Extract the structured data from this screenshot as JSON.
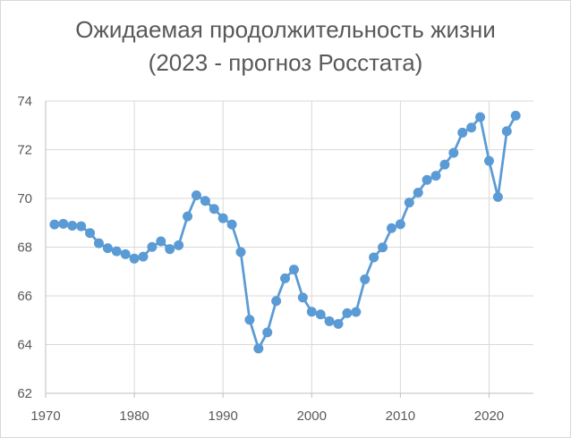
{
  "chart_data": {
    "type": "line",
    "title_lines": [
      "Ожидаемая продолжительность жизни",
      "(2023 - прогноз Росстата)"
    ],
    "xlabel": "",
    "ylabel": "",
    "xlim": [
      1970,
      2025
    ],
    "ylim": [
      62,
      74
    ],
    "x_ticks": [
      1970,
      1980,
      1990,
      2000,
      2010,
      2020
    ],
    "y_ticks": [
      62,
      64,
      66,
      68,
      70,
      72,
      74
    ],
    "grid": true,
    "legend": "none",
    "series": [
      {
        "color": "#5b9bd5",
        "x": [
          1971,
          1972,
          1973,
          1974,
          1975,
          1976,
          1977,
          1978,
          1979,
          1980,
          1981,
          1982,
          1983,
          1984,
          1985,
          1986,
          1987,
          1988,
          1989,
          1990,
          1991,
          1992,
          1993,
          1994,
          1995,
          1996,
          1997,
          1998,
          1999,
          2000,
          2001,
          2002,
          2003,
          2004,
          2005,
          2006,
          2007,
          2008,
          2009,
          2010,
          2011,
          2012,
          2013,
          2014,
          2015,
          2016,
          2017,
          2018,
          2019,
          2020,
          2021,
          2022,
          2023
        ],
        "values": [
          68.93,
          68.96,
          68.88,
          68.86,
          68.58,
          68.16,
          67.96,
          67.83,
          67.71,
          67.53,
          67.61,
          68.01,
          68.24,
          67.92,
          68.08,
          69.26,
          70.13,
          69.9,
          69.57,
          69.19,
          68.93,
          67.8,
          65.02,
          63.84,
          64.5,
          65.79,
          66.72,
          67.08,
          65.93,
          65.35,
          65.24,
          64.96,
          64.85,
          65.29,
          65.34,
          66.68,
          67.58,
          67.99,
          68.78,
          68.94,
          69.83,
          70.24,
          70.76,
          70.93,
          71.39,
          71.87,
          72.7,
          72.91,
          73.34,
          71.54,
          70.06,
          72.76,
          73.4
        ]
      }
    ]
  }
}
